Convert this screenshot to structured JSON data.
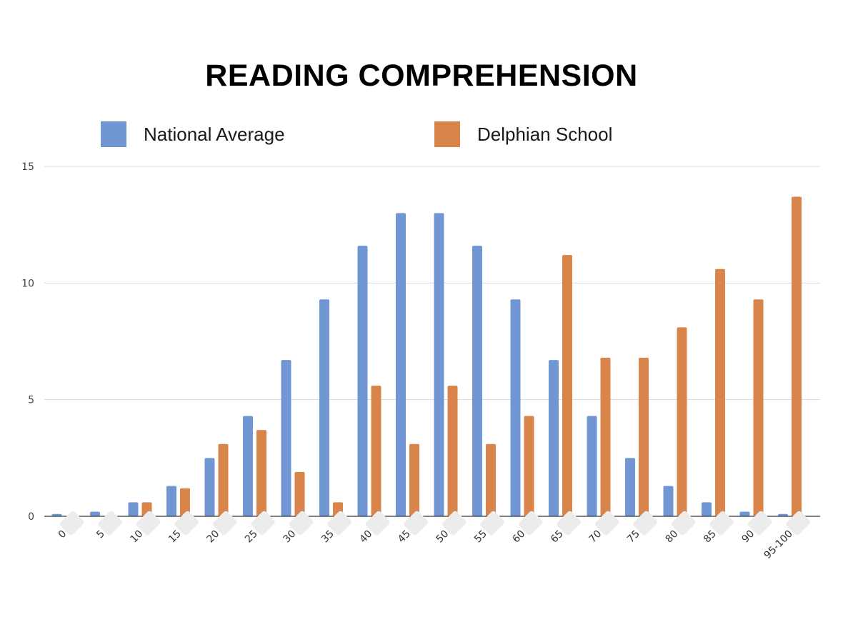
{
  "chart_data": {
    "type": "bar",
    "title": "READING COMPREHENSION",
    "categories": [
      "0",
      "5",
      "10",
      "15",
      "20",
      "25",
      "30",
      "35",
      "40",
      "45",
      "50",
      "55",
      "60",
      "65",
      "70",
      "75",
      "80",
      "85",
      "90",
      "95-100"
    ],
    "series": [
      {
        "name": "National Average",
        "color": "#7097d4",
        "values": [
          0.1,
          0.2,
          0.6,
          1.3,
          2.5,
          4.3,
          6.7,
          9.3,
          11.6,
          13.0,
          13.0,
          11.6,
          9.3,
          6.7,
          4.3,
          2.5,
          1.3,
          0.6,
          0.2,
          0.1
        ]
      },
      {
        "name": "Delphian School",
        "color": "#d9844a",
        "values": [
          0,
          0,
          0.6,
          1.2,
          3.1,
          3.7,
          1.9,
          0.6,
          5.6,
          3.1,
          5.6,
          3.1,
          4.3,
          11.2,
          6.8,
          6.8,
          8.1,
          10.6,
          9.3,
          13.7
        ]
      }
    ],
    "ylim": [
      0,
      15
    ],
    "yticks": [
      0,
      5,
      10,
      15
    ],
    "xlabel": "",
    "ylabel": "",
    "grid": true,
    "legend": "top"
  }
}
